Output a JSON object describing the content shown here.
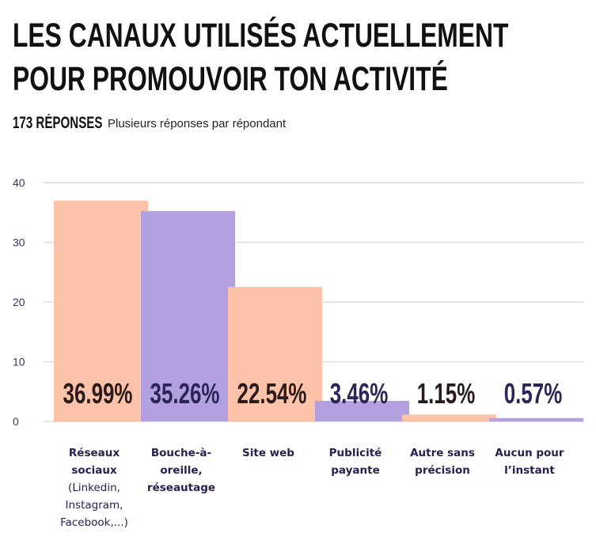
{
  "title_lines": [
    "LES CANAUX UTILISÉS ACTUELLEMENT",
    "POUR PROMOUVOIR TON ACTIVITÉ"
  ],
  "responses": "173 RÉPONSES",
  "subtitle": "Plusieurs réponses par répondant",
  "colors": {
    "peach": "#fdc3aa",
    "lavender": "#b2a0df",
    "label_dark": "#2a1a1a",
    "label_purple": "#2d2557",
    "grid": "#dcdce2",
    "axis_text": "#3b3560"
  },
  "chart_data": {
    "type": "bar",
    "categories": [
      {
        "bold": "Réseaux sociaux",
        "regular": "(Linkedin, Instagram, Facebook,...)"
      },
      {
        "bold": "Bouche-à-oreille, réseautage",
        "regular": ""
      },
      {
        "bold": "Site web",
        "regular": ""
      },
      {
        "bold": "Publicité payante",
        "regular": ""
      },
      {
        "bold": "Autre sans précision",
        "regular": ""
      },
      {
        "bold": "Aucun pour l’instant",
        "regular": ""
      }
    ],
    "values": [
      36.99,
      35.26,
      22.54,
      3.46,
      1.15,
      0.57
    ],
    "data_labels": [
      "36.99%",
      "35.26%",
      "22.54%",
      "3.46%",
      "1.15%",
      "0.57%"
    ],
    "bar_colors": [
      "peach",
      "lavender",
      "peach",
      "lavender",
      "peach",
      "lavender"
    ],
    "ylim": [
      0,
      40
    ],
    "yticks": [
      0,
      10,
      20,
      30,
      40
    ],
    "grid": true
  }
}
